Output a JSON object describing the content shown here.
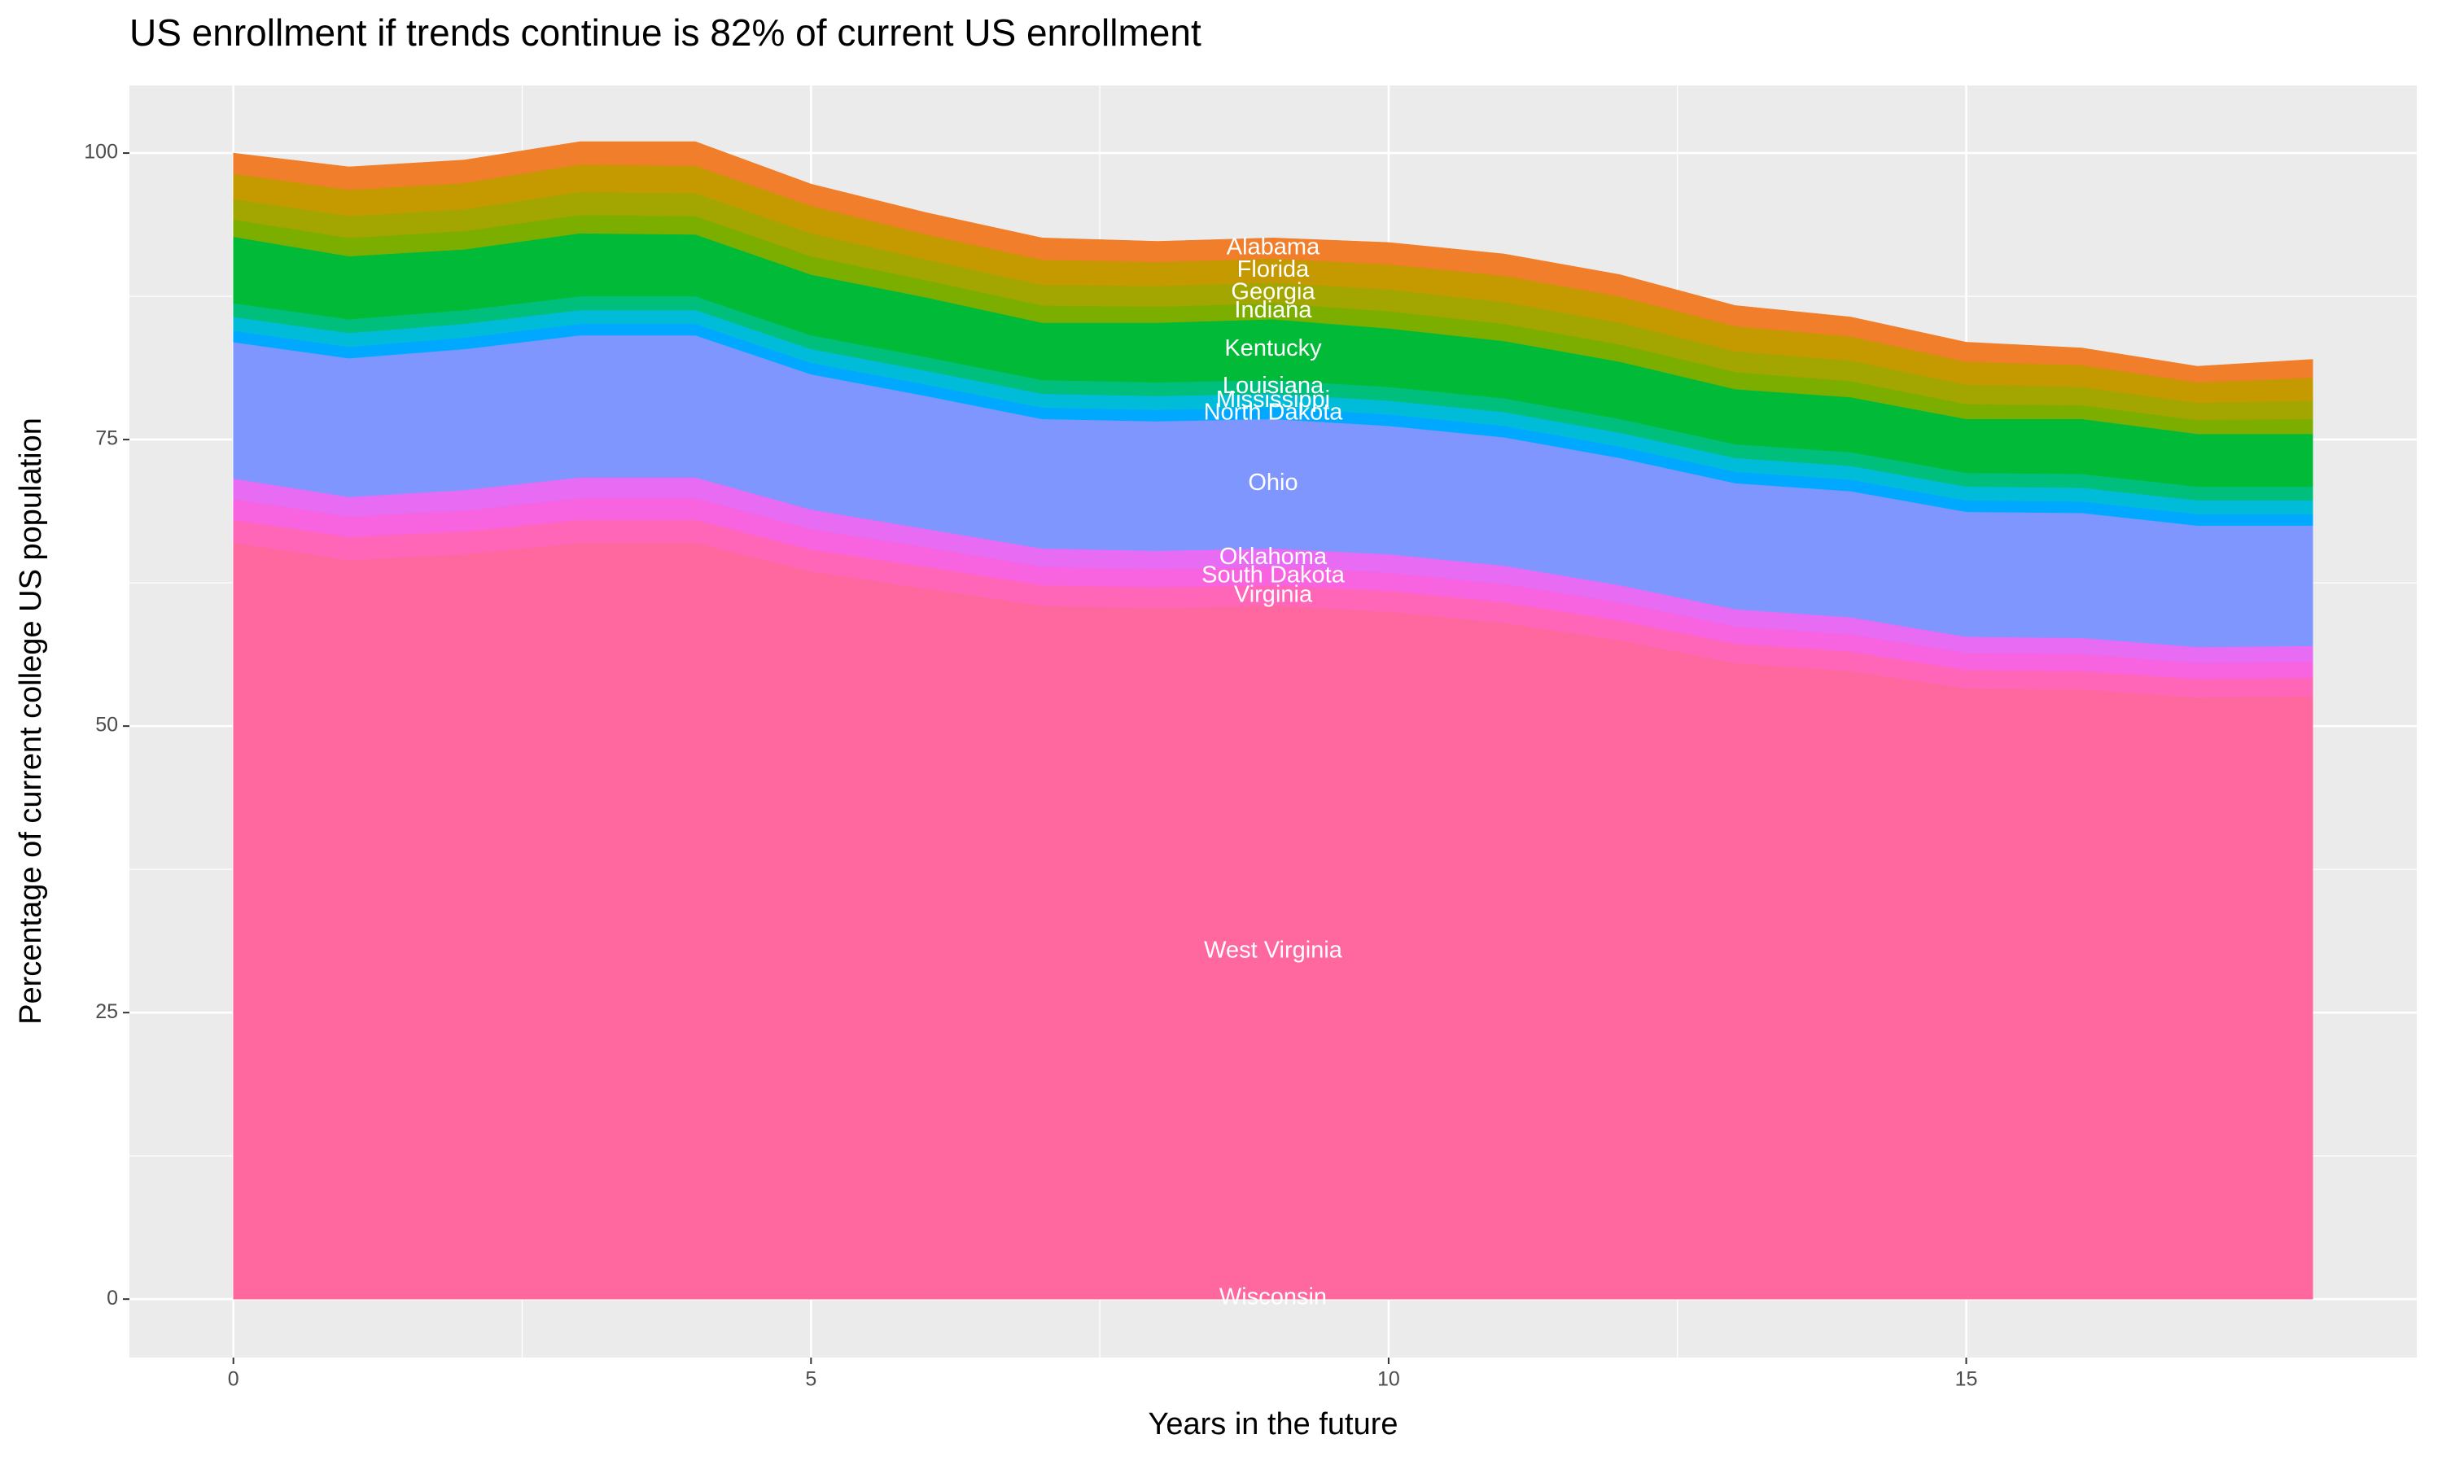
{
  "chart_data": {
    "type": "stacked_area",
    "title": "US enrollment if trends continue is 82% of current US enrollment",
    "x_label": "Years in the future",
    "y_label": "Percentage of current college US population",
    "x": [
      0,
      1,
      2,
      3,
      4,
      5,
      6,
      7,
      8,
      9,
      10,
      11,
      12,
      13,
      14,
      15,
      16,
      17,
      18
    ],
    "xlim": [
      -0.9,
      18.9
    ],
    "xticks": [
      0,
      5,
      10,
      15
    ],
    "ylim": [
      -5.1,
      105.9
    ],
    "yticks": [
      0,
      25,
      50,
      75,
      100
    ],
    "grid": true,
    "series": [
      {
        "name": "Wisconsin",
        "color": "#FF6699",
        "values": [
          0.2,
          0.2,
          0.2,
          0.2,
          0.2,
          0.2,
          0.2,
          0.2,
          0.2,
          0.2,
          0.2,
          0.2,
          0.2,
          0.2,
          0.2,
          0.2,
          0.2,
          0.2,
          0.2
        ]
      },
      {
        "name": "West Virginia",
        "color": "#FF689E",
        "values": [
          65.8,
          64.3,
          64.8,
          65.8,
          65.8,
          63.3,
          61.8,
          60.3,
          60.1,
          60.3,
          59.8,
          58.8,
          57.3,
          55.3,
          54.6,
          53.1,
          53.0,
          52.3,
          52.4
        ]
      },
      {
        "name": "Virginia",
        "color": "#FF66B8",
        "values": [
          2.0,
          2.0,
          2.0,
          2.0,
          2.0,
          1.9,
          1.9,
          1.8,
          1.8,
          1.8,
          1.8,
          1.8,
          1.7,
          1.7,
          1.7,
          1.6,
          1.6,
          1.6,
          1.6
        ]
      },
      {
        "name": "South Dakota",
        "color": "#F863DF",
        "values": [
          1.8,
          1.8,
          1.8,
          1.9,
          1.9,
          1.8,
          1.7,
          1.6,
          1.6,
          1.6,
          1.6,
          1.6,
          1.6,
          1.5,
          1.5,
          1.5,
          1.5,
          1.4,
          1.4
        ]
      },
      {
        "name": "Oklahoma",
        "color": "#E76BF3",
        "values": [
          1.8,
          1.7,
          1.8,
          1.8,
          1.8,
          1.7,
          1.6,
          1.6,
          1.6,
          1.6,
          1.6,
          1.6,
          1.5,
          1.5,
          1.5,
          1.4,
          1.4,
          1.4,
          1.4
        ]
      },
      {
        "name": "Ohio",
        "color": "#7F96FF",
        "values": [
          11.9,
          12.1,
          12.3,
          12.4,
          12.4,
          11.8,
          11.6,
          11.3,
          11.3,
          11.3,
          11.2,
          11.2,
          11.1,
          11.0,
          11.0,
          10.9,
          10.9,
          10.6,
          10.5
        ]
      },
      {
        "name": "North Dakota",
        "color": "#00A9FF",
        "values": [
          1.0,
          1.0,
          1.0,
          1.0,
          1.0,
          1.0,
          1.0,
          1.0,
          1.0,
          1.0,
          1.0,
          1.0,
          1.0,
          1.0,
          1.0,
          1.0,
          1.0,
          1.0,
          1.0
        ]
      },
      {
        "name": "Mississippi",
        "color": "#00BCD8",
        "values": [
          1.2,
          1.2,
          1.2,
          1.2,
          1.2,
          1.2,
          1.2,
          1.2,
          1.2,
          1.2,
          1.2,
          1.2,
          1.2,
          1.2,
          1.2,
          1.2,
          1.2,
          1.2,
          1.2
        ]
      },
      {
        "name": "Louisiana",
        "color": "#00BF7D",
        "values": [
          1.2,
          1.2,
          1.2,
          1.2,
          1.2,
          1.2,
          1.2,
          1.2,
          1.2,
          1.2,
          1.2,
          1.2,
          1.2,
          1.2,
          1.2,
          1.2,
          1.2,
          1.2,
          1.2
        ]
      },
      {
        "name": "Kentucky",
        "color": "#00BA38",
        "values": [
          5.8,
          5.5,
          5.3,
          5.5,
          5.4,
          5.3,
          5.2,
          5.0,
          5.2,
          5.3,
          5.1,
          5.0,
          5.0,
          4.8,
          4.8,
          4.7,
          4.8,
          4.6,
          4.6
        ]
      },
      {
        "name": "Indiana",
        "color": "#7CAE00",
        "values": [
          1.5,
          1.6,
          1.6,
          1.6,
          1.6,
          1.6,
          1.5,
          1.5,
          1.4,
          1.4,
          1.5,
          1.5,
          1.5,
          1.5,
          1.4,
          1.3,
          1.2,
          1.2,
          1.3
        ]
      },
      {
        "name": "Georgia",
        "color": "#A3A500",
        "values": [
          1.8,
          1.9,
          1.9,
          2.0,
          2.0,
          2.0,
          1.8,
          1.8,
          1.8,
          1.8,
          1.9,
          1.9,
          1.9,
          1.8,
          1.8,
          1.7,
          1.6,
          1.5,
          1.6
        ]
      },
      {
        "name": "Florida",
        "color": "#C49A00",
        "values": [
          2.2,
          2.3,
          2.3,
          2.4,
          2.4,
          2.4,
          2.2,
          2.2,
          2.1,
          2.1,
          2.2,
          2.3,
          2.3,
          2.2,
          2.1,
          2.0,
          1.9,
          1.8,
          2.0
        ]
      },
      {
        "name": "Alabama",
        "color": "#F07E2A",
        "values": [
          1.8,
          2.0,
          2.0,
          2.0,
          2.1,
          1.9,
          1.9,
          1.9,
          1.8,
          1.8,
          1.9,
          1.9,
          1.9,
          1.8,
          1.7,
          1.7,
          1.5,
          1.4,
          1.6
        ]
      }
    ]
  }
}
